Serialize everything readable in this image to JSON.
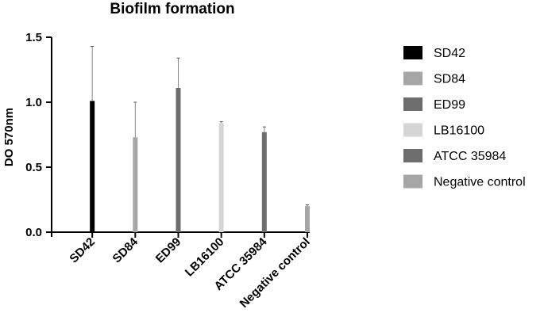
{
  "chart_data": {
    "type": "bar",
    "title": "Biofilm formation",
    "xlabel": "",
    "ylabel": "DO 570nm",
    "ylim": [
      0,
      1.5
    ],
    "yticks": [
      "0.0",
      "0.5",
      "1.0",
      "1.5"
    ],
    "categories": [
      "SD42",
      "SD84",
      "ED99",
      "LB16100",
      "ATCC 35984",
      "Negative control"
    ],
    "series": [
      {
        "name": "SD42",
        "color": "#000000",
        "values": [
          1.01,
          null,
          null,
          null,
          null,
          null
        ],
        "errors": [
          0.42,
          null,
          null,
          null,
          null,
          null
        ]
      },
      {
        "name": "SD84",
        "color": "#a6a6a6",
        "values": [
          null,
          0.73,
          null,
          null,
          null,
          null
        ],
        "errors": [
          null,
          0.27,
          null,
          null,
          null,
          null
        ]
      },
      {
        "name": "ED99",
        "color": "#6e6e6e",
        "values": [
          null,
          null,
          1.11,
          null,
          null,
          null
        ],
        "errors": [
          null,
          null,
          0.23,
          null,
          null,
          null
        ]
      },
      {
        "name": "LB16100",
        "color": "#d6d6d6",
        "values": [
          null,
          null,
          null,
          0.84,
          null,
          null
        ],
        "errors": [
          null,
          null,
          null,
          0.01,
          null,
          null
        ]
      },
      {
        "name": "ATCC 35984",
        "color": "#6e6e6e",
        "values": [
          null,
          null,
          null,
          null,
          0.77,
          null
        ],
        "errors": [
          null,
          null,
          null,
          null,
          0.04,
          null
        ]
      },
      {
        "name": "Negative control",
        "color": "#a6a6a6",
        "values": [
          null,
          null,
          null,
          null,
          null,
          0.2
        ],
        "errors": [
          null,
          null,
          null,
          null,
          null,
          0.01
        ]
      }
    ],
    "grid": false,
    "legend_position": "right"
  }
}
